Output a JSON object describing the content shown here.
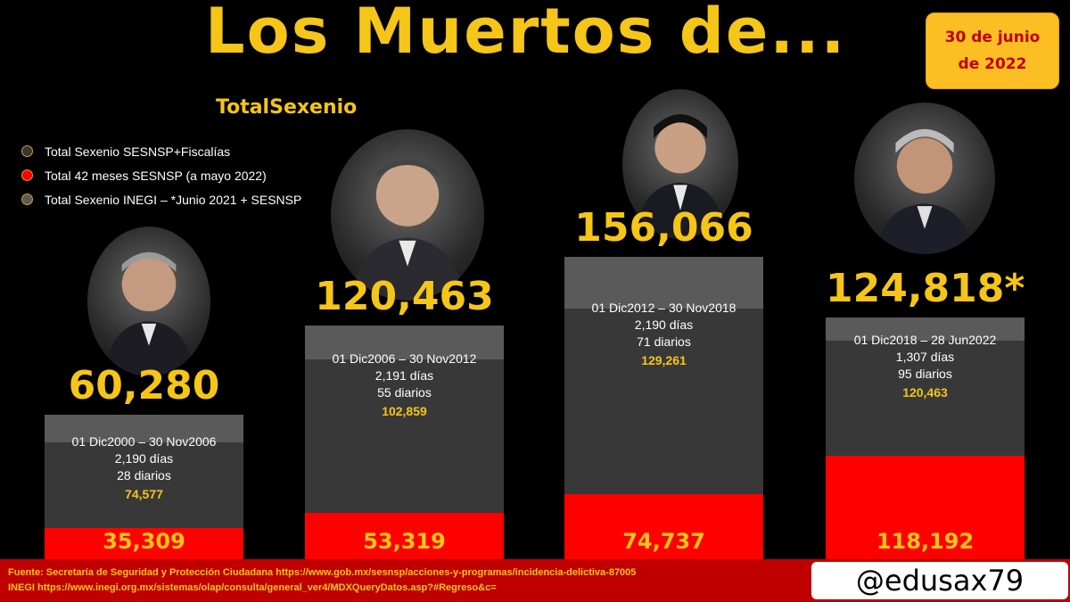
{
  "header": {
    "title": "Los Muertos de...",
    "date_line1": "30 de junio",
    "date_line2": "de 2022",
    "subtitle": "TotalSexenio"
  },
  "legend": [
    {
      "label": "Total Sexenio SESNSP+Fiscalías",
      "color": "#383838"
    },
    {
      "label": "Total 42 meses SESNSP (a mayo 2022)",
      "color": "#ff0000"
    },
    {
      "label": "Total Sexenio INEGI – *Junio 2021 + SESNSP",
      "color": "#5a5a5a"
    }
  ],
  "chart_data": {
    "type": "bar",
    "categories": [
      "01 Dic2000 – 30 Nov2006",
      "01 Dic2006 – 30 Nov2012",
      "01 Dic2012 – 30 Nov2018",
      "01 Dic2018 – 28 Jun2022"
    ],
    "series": [
      {
        "name": "Total Sexenio INEGI – *Junio 2021 + SESNSP",
        "values": [
          60280,
          120463,
          156066,
          124818
        ]
      },
      {
        "name": "Total Sexenio SESNSP+Fiscalías",
        "values": [
          74577,
          102859,
          129261,
          120463
        ]
      },
      {
        "name": "Total 42 meses SESNSP (a mayo 2022)",
        "values": [
          35309,
          53319,
          74737,
          118192
        ]
      }
    ],
    "bars": [
      {
        "big_label": "60,280",
        "period": "01 Dic2000 – 30 Nov2006",
        "days": "2,190 días",
        "daily": "28 diarios",
        "mid_label": "74,577",
        "red_label": "35,309",
        "top": 60280,
        "mid": 74577,
        "red": 35309
      },
      {
        "big_label": "120,463",
        "period": "01 Dic2006 – 30 Nov2012",
        "days": "2,191 días",
        "daily": "55 diarios",
        "mid_label": "102,859",
        "red_label": "53,319",
        "top": 120463,
        "mid": 102859,
        "red": 53319
      },
      {
        "big_label": "156,066",
        "period": "01 Dic2012 – 30 Nov2018",
        "days": "2,190 días",
        "daily": "71 diarios",
        "mid_label": "129,261",
        "red_label": "74,737",
        "top": 156066,
        "mid": 129261,
        "red": 74737
      },
      {
        "big_label": "124,818*",
        "period": "01 Dic2018 – 28 Jun2022",
        "days": "1,307 días",
        "daily": "95 diarios",
        "mid_label": "120,463",
        "red_label": "118,192",
        "top": 124818,
        "mid": 120463,
        "red": 118192
      }
    ],
    "ylim": [
      0,
      160000
    ]
  },
  "footer": {
    "source_line1": "Fuente: Secretaría de Seguridad y Protección Ciudadana https://www.gob.mx/sesnsp/acciones-y-programas/incidencia-delictiva-87005",
    "source_line2": "INEGI https://www.inegi.org.mx/sistemas/olap/consulta/general_ver4/MDXQueryDatos.asp?#Regreso&c=",
    "handle": "@edusax79"
  }
}
